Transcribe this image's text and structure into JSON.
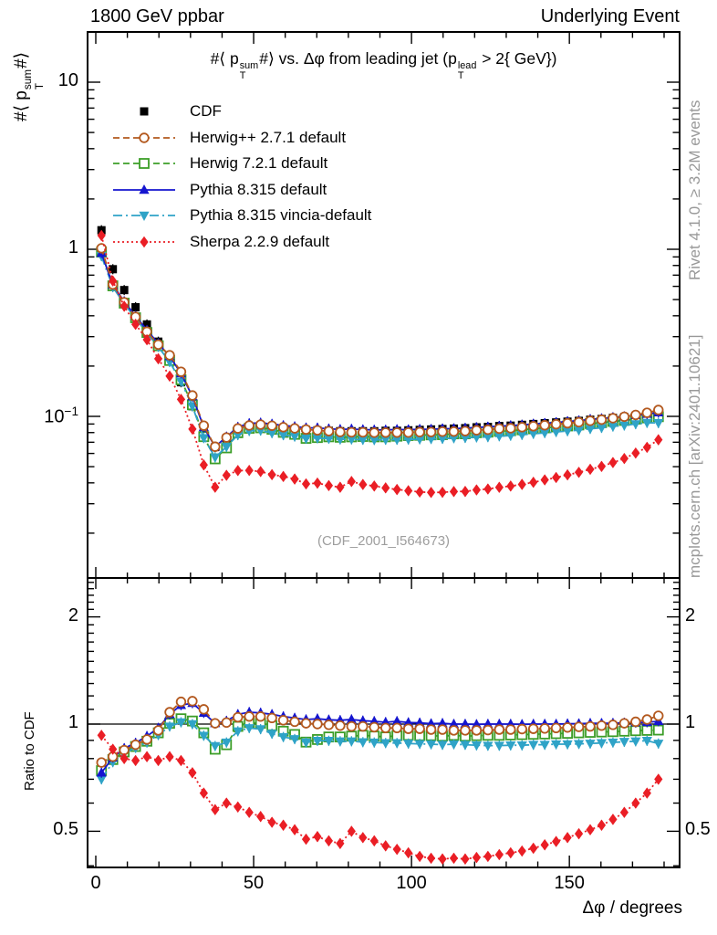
{
  "header": {
    "left": "1800 GeV ppbar",
    "right": "Underlying Event"
  },
  "title": {
    "p0": "#⟨ p",
    "sub1": "T",
    "sup1": "sum",
    "p1": "#⟩ vs. Δφ from leading jet  (p",
    "sub2": "T",
    "sup2": "lead",
    "p2": " > 2{ GeV})"
  },
  "y_label": {
    "p0": "#⟨ p",
    "sub1": "T",
    "sup1": "sum",
    "p1": "#⟩"
  },
  "side_notes": {
    "top": "Rivet 4.1.0, ≥ 3.2M events",
    "bottom": "mcplots.cern.ch [arXiv:2401.10621]",
    "color": "#999999"
  },
  "watermark": {
    "text": "(CDF_2001_I564673)",
    "color": "#9e9e9e"
  },
  "chart_data": {
    "type": "line",
    "panels": [
      "main (log y)",
      "ratio (log y)"
    ],
    "axes": {
      "x": {
        "label": "Δφ / degrees",
        "range_deg": [
          0,
          180
        ],
        "major_ticks": [
          0,
          50,
          100,
          150
        ],
        "minor_step": 10
      },
      "y_main": {
        "scale": "log",
        "range": [
          0.011,
          20
        ],
        "labeled_ticks": [
          {
            "v": 10,
            "text": "10"
          },
          {
            "v": 1,
            "text": "1"
          },
          {
            "v": 0.1,
            "base": "10",
            "exp": "−1"
          }
        ]
      },
      "y_ratio": {
        "label": "Ratio to CDF",
        "scale": "log",
        "range": [
          0.4,
          2.57
        ],
        "labeled_ticks": [
          {
            "v": 2,
            "text": "2"
          },
          {
            "v": 1,
            "text": "1"
          },
          {
            "v": 0.5,
            "text": "0.5"
          }
        ],
        "minor_ticks": [
          0.4,
          0.6,
          0.7,
          0.8,
          0.9,
          1.1,
          1.2,
          1.3,
          1.4,
          1.5,
          1.6,
          1.7,
          1.8,
          1.9,
          2.1,
          2.2,
          2.3,
          2.4,
          2.5
        ],
        "unity_line": 1
      }
    },
    "x_deg": [
      1.8,
      5.4,
      9,
      12.6,
      16.2,
      19.8,
      23.4,
      27,
      30.6,
      34.2,
      37.8,
      41.4,
      45,
      48.6,
      52.2,
      55.8,
      59.4,
      63,
      66.6,
      70.2,
      73.8,
      77.4,
      81,
      84.6,
      88.2,
      91.8,
      95.4,
      99,
      102.6,
      106.2,
      109.8,
      113.4,
      117,
      120.6,
      124.2,
      127.8,
      131.4,
      135,
      138.6,
      142.2,
      145.8,
      149.4,
      153,
      156.6,
      160.2,
      163.8,
      167.4,
      171,
      174.6,
      178.2
    ],
    "series": [
      {
        "id": "cdf",
        "name": "CDF",
        "color": "#000000",
        "marker": "square-filled",
        "line": "none",
        "values": [
          1.3,
          0.76,
          0.57,
          0.45,
          0.355,
          0.28,
          0.215,
          0.16,
          0.115,
          0.08,
          0.0655,
          0.074,
          0.081,
          0.084,
          0.085,
          0.0845,
          0.084,
          0.0835,
          0.083,
          0.0825,
          0.082,
          0.0815,
          0.0815,
          0.0815,
          0.0815,
          0.082,
          0.082,
          0.0825,
          0.083,
          0.0835,
          0.084,
          0.0845,
          0.085,
          0.086,
          0.0865,
          0.0875,
          0.088,
          0.089,
          0.09,
          0.091,
          0.092,
          0.093,
          0.094,
          0.0955,
          0.0965,
          0.098,
          0.099,
          0.1005,
          0.102,
          0.1035
        ]
      },
      {
        "id": "herwigpp",
        "name": "Herwig++ 2.7.1 default",
        "color": "#b3591f",
        "marker": "circle-open",
        "line": "dash",
        "ratio_to_cdf": [
          0.78,
          0.81,
          0.845,
          0.875,
          0.905,
          0.96,
          1.08,
          1.155,
          1.16,
          1.1,
          1.005,
          1.01,
          1.045,
          1.05,
          1.05,
          1.04,
          1.025,
          1.015,
          1.005,
          1.0,
          0.995,
          0.99,
          0.985,
          0.985,
          0.98,
          0.975,
          0.975,
          0.97,
          0.97,
          0.965,
          0.965,
          0.96,
          0.96,
          0.96,
          0.962,
          0.965,
          0.965,
          0.968,
          0.97,
          0.972,
          0.975,
          0.978,
          0.982,
          0.985,
          0.99,
          0.995,
          1.005,
          1.015,
          1.03,
          1.055
        ]
      },
      {
        "id": "herwig7",
        "name": "Herwig 7.2.1 default",
        "color": "#3c9e28",
        "marker": "square-open",
        "line": "dash",
        "ratio_to_cdf": [
          0.74,
          0.795,
          0.835,
          0.865,
          0.895,
          0.945,
          1.005,
          1.035,
          1.02,
          0.945,
          0.85,
          0.875,
          0.985,
          1.01,
          1.005,
          0.99,
          0.955,
          0.935,
          0.89,
          0.905,
          0.92,
          0.92,
          0.925,
          0.93,
          0.925,
          0.92,
          0.928,
          0.93,
          0.928,
          0.928,
          0.925,
          0.93,
          0.925,
          0.928,
          0.93,
          0.93,
          0.932,
          0.934,
          0.936,
          0.938,
          0.94,
          0.942,
          0.945,
          0.948,
          0.95,
          0.952,
          0.955,
          0.958,
          0.96,
          0.962
        ]
      },
      {
        "id": "pythia",
        "name": "Pythia 8.315 default",
        "color": "#1515cf",
        "marker": "triangle-up",
        "line": "solid",
        "ratio_to_cdf": [
          0.73,
          0.805,
          0.855,
          0.885,
          0.925,
          0.975,
          1.065,
          1.13,
          1.145,
          1.075,
          1.005,
          1.02,
          1.065,
          1.08,
          1.075,
          1.065,
          1.05,
          1.04,
          1.03,
          1.035,
          1.028,
          1.025,
          1.03,
          1.022,
          1.018,
          1.012,
          1.018,
          1.01,
          1.008,
          1.003,
          1.005,
          1.0,
          1.0,
          0.998,
          1.0,
          1.0,
          1.0,
          0.998,
          1.0,
          1.0,
          1.0,
          1.002,
          1.003,
          1.005,
          1.005,
          1.006,
          1.008,
          1.01,
          1.012,
          1.018
        ]
      },
      {
        "id": "vincia",
        "name": "Pythia 8.315 vincia-default",
        "color": "#2fa3c7",
        "marker": "triangle-down",
        "line": "dashdot",
        "ratio_to_cdf": [
          0.7,
          0.782,
          0.828,
          0.858,
          0.888,
          0.932,
          0.985,
          1.012,
          1.0,
          0.928,
          0.868,
          0.888,
          0.955,
          0.975,
          0.968,
          0.94,
          0.92,
          0.908,
          0.888,
          0.898,
          0.898,
          0.895,
          0.895,
          0.89,
          0.888,
          0.885,
          0.885,
          0.882,
          0.88,
          0.878,
          0.875,
          0.878,
          0.875,
          0.872,
          0.87,
          0.87,
          0.872,
          0.872,
          0.875,
          0.875,
          0.878,
          0.878,
          0.88,
          0.882,
          0.885,
          0.888,
          0.892,
          0.895,
          0.898,
          0.882
        ]
      },
      {
        "id": "sherpa",
        "name": "Sherpa 2.2.9 default",
        "color": "#ea1e25",
        "marker": "diamond",
        "line": "dot",
        "ratio_to_cdf": [
          0.93,
          0.85,
          0.8,
          0.79,
          0.81,
          0.79,
          0.81,
          0.79,
          0.73,
          0.64,
          0.575,
          0.6,
          0.585,
          0.565,
          0.55,
          0.53,
          0.52,
          0.505,
          0.475,
          0.483,
          0.47,
          0.462,
          0.5,
          0.48,
          0.47,
          0.455,
          0.445,
          0.435,
          0.425,
          0.42,
          0.418,
          0.42,
          0.418,
          0.422,
          0.425,
          0.43,
          0.435,
          0.44,
          0.448,
          0.458,
          0.468,
          0.48,
          0.492,
          0.505,
          0.52,
          0.54,
          0.565,
          0.6,
          0.64,
          0.7
        ]
      }
    ],
    "note": "MC curves in the main panel equal ratio_to_cdf × CDF values"
  }
}
